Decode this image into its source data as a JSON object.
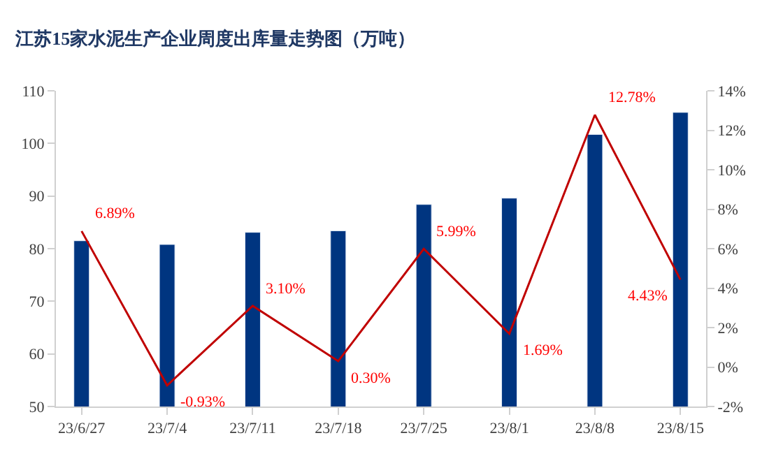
{
  "chart_data": {
    "type": "bar",
    "title": "江苏15家水泥生产企业周度出库量走势图（万吨）",
    "categories": [
      "23/6/27",
      "23/7/4",
      "23/7/11",
      "23/7/18",
      "23/7/25",
      "23/8/1",
      "23/8/8",
      "23/8/15"
    ],
    "series": [
      {
        "color": "#003580",
        "values": [
          81.5,
          80.8,
          83.1,
          83.4,
          88.4,
          89.6,
          101.7,
          105.9
        ]
      },
      {
        "type": "line",
        "axis": "y2",
        "color": "#c00000",
        "values": [
          6.89,
          -0.93,
          3.1,
          0.3,
          5.99,
          1.69,
          12.78,
          4.43
        ],
        "value_labels": [
          "6.89%",
          "-0.93%",
          "3.10%",
          "0.30%",
          "5.99%",
          "1.69%",
          "12.78%",
          "4.43%"
        ]
      }
    ],
    "ylim": [
      50,
      110
    ],
    "yticks": [
      50,
      60,
      70,
      80,
      90,
      100,
      110
    ],
    "y2lim": [
      -2,
      14
    ],
    "y2ticks": [
      {
        "value": -2,
        "label": "-2%"
      },
      {
        "value": 0,
        "label": "0%"
      },
      {
        "value": 2,
        "label": "2%"
      },
      {
        "value": 4,
        "label": "4%"
      },
      {
        "value": 6,
        "label": "6%"
      },
      {
        "value": 8,
        "label": "8%"
      },
      {
        "value": 10,
        "label": "10%"
      },
      {
        "value": 12,
        "label": "12%"
      },
      {
        "value": 14,
        "label": "14%"
      }
    ]
  }
}
